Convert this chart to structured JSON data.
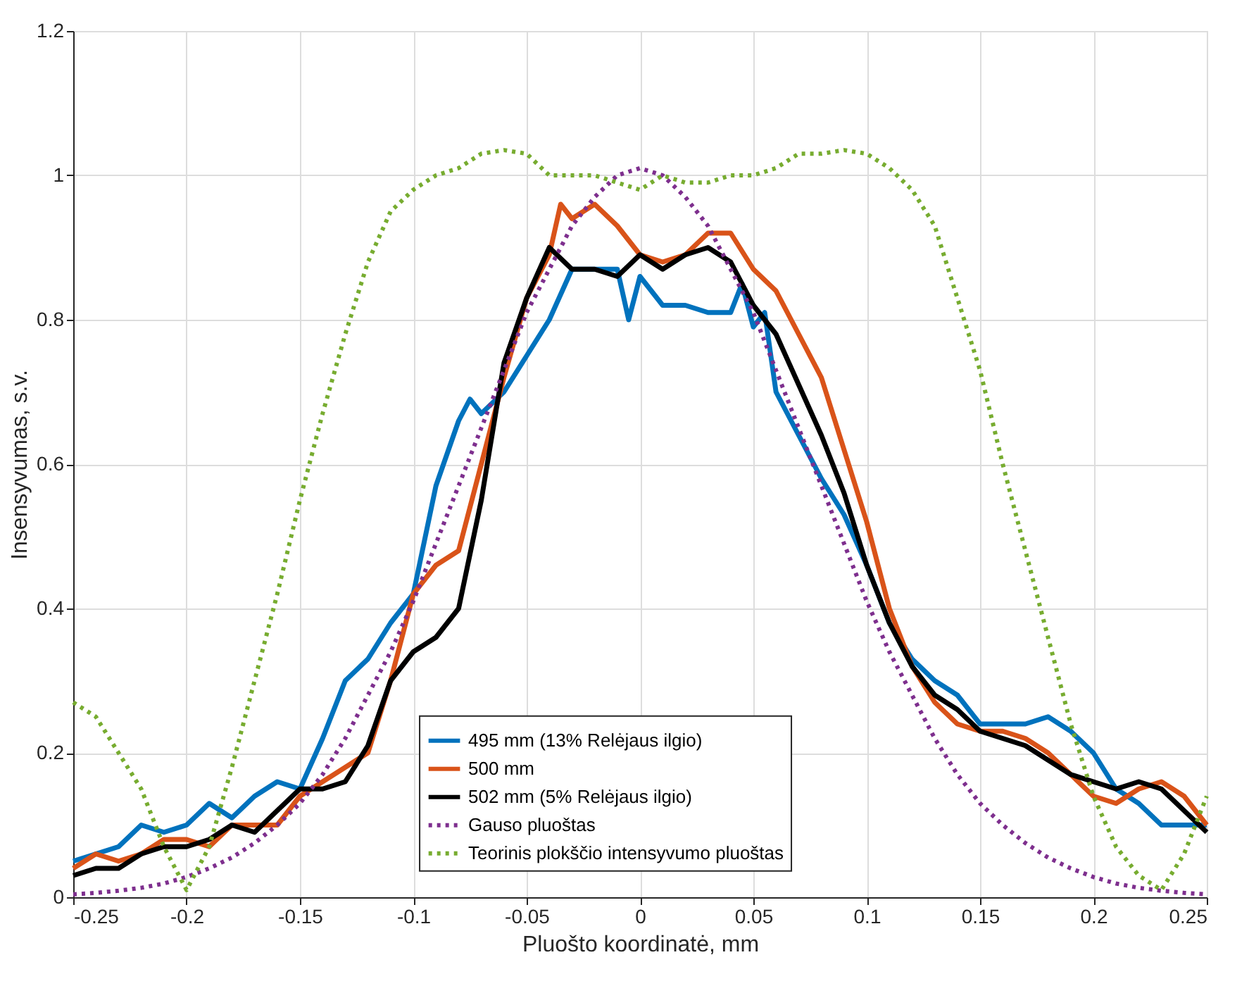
{
  "chart_data": {
    "type": "line",
    "xlabel": "Pluošto koordinatė, mm",
    "ylabel": "Insensyvumas, s.v.",
    "xlim": [
      -0.25,
      0.25
    ],
    "xticks": [
      -0.25,
      -0.2,
      -0.15,
      -0.1,
      -0.05,
      0,
      0.05,
      0.1,
      0.15,
      0.2,
      0.25
    ],
    "ylim": [
      0,
      1.2
    ],
    "yticks": [
      0,
      0.2,
      0.4,
      0.6,
      0.8,
      1,
      1.2
    ],
    "grid": true,
    "legend": "bottom",
    "marker": "none",
    "series": [
      {
        "name": "495 mm (13% Relėjaus ilgio)",
        "color": "#0072bd",
        "line_style": "solid",
        "x": [
          -0.25,
          -0.24,
          -0.23,
          -0.22,
          -0.21,
          -0.2,
          -0.19,
          -0.18,
          -0.17,
          -0.16,
          -0.15,
          -0.14,
          -0.13,
          -0.12,
          -0.11,
          -0.1,
          -0.09,
          -0.08,
          -0.075,
          -0.07,
          -0.06,
          -0.05,
          -0.04,
          -0.03,
          -0.02,
          -0.01,
          -0.005,
          0,
          0.01,
          0.02,
          0.03,
          0.04,
          0.045,
          0.05,
          0.055,
          0.06,
          0.07,
          0.08,
          0.09,
          0.1,
          0.11,
          0.12,
          0.13,
          0.14,
          0.15,
          0.16,
          0.17,
          0.18,
          0.19,
          0.2,
          0.21,
          0.22,
          0.23,
          0.24,
          0.25
        ],
        "values": [
          0.05,
          0.06,
          0.07,
          0.1,
          0.09,
          0.1,
          0.13,
          0.11,
          0.14,
          0.16,
          0.15,
          0.22,
          0.3,
          0.33,
          0.38,
          0.42,
          0.57,
          0.66,
          0.69,
          0.67,
          0.7,
          0.75,
          0.8,
          0.87,
          0.87,
          0.87,
          0.8,
          0.86,
          0.82,
          0.82,
          0.81,
          0.81,
          0.85,
          0.79,
          0.81,
          0.7,
          0.64,
          0.58,
          0.53,
          0.46,
          0.38,
          0.33,
          0.3,
          0.28,
          0.24,
          0.24,
          0.24,
          0.25,
          0.23,
          0.2,
          0.15,
          0.13,
          0.1,
          0.1,
          0.1
        ]
      },
      {
        "name": "500 mm",
        "color": "#d95319",
        "line_style": "solid",
        "x": [
          -0.25,
          -0.24,
          -0.23,
          -0.22,
          -0.21,
          -0.2,
          -0.19,
          -0.18,
          -0.17,
          -0.16,
          -0.15,
          -0.14,
          -0.13,
          -0.12,
          -0.11,
          -0.1,
          -0.09,
          -0.08,
          -0.07,
          -0.06,
          -0.05,
          -0.04,
          -0.035,
          -0.03,
          -0.02,
          -0.01,
          0,
          0.01,
          0.02,
          0.03,
          0.04,
          0.05,
          0.06,
          0.07,
          0.08,
          0.09,
          0.1,
          0.11,
          0.12,
          0.13,
          0.14,
          0.15,
          0.16,
          0.17,
          0.18,
          0.19,
          0.2,
          0.21,
          0.22,
          0.23,
          0.24,
          0.25
        ],
        "values": [
          0.04,
          0.06,
          0.05,
          0.06,
          0.08,
          0.08,
          0.07,
          0.1,
          0.1,
          0.1,
          0.14,
          0.16,
          0.18,
          0.2,
          0.3,
          0.42,
          0.46,
          0.48,
          0.6,
          0.72,
          0.83,
          0.89,
          0.96,
          0.94,
          0.96,
          0.93,
          0.89,
          0.88,
          0.89,
          0.92,
          0.92,
          0.87,
          0.84,
          0.78,
          0.72,
          0.62,
          0.52,
          0.4,
          0.32,
          0.27,
          0.24,
          0.23,
          0.23,
          0.22,
          0.2,
          0.17,
          0.14,
          0.13,
          0.15,
          0.16,
          0.14,
          0.1
        ]
      },
      {
        "name": "502 mm (5% Relėjaus ilgio)",
        "color": "#000000",
        "line_style": "solid",
        "x": [
          -0.25,
          -0.24,
          -0.23,
          -0.22,
          -0.21,
          -0.2,
          -0.19,
          -0.18,
          -0.17,
          -0.16,
          -0.15,
          -0.14,
          -0.13,
          -0.12,
          -0.11,
          -0.1,
          -0.09,
          -0.08,
          -0.07,
          -0.06,
          -0.05,
          -0.04,
          -0.03,
          -0.02,
          -0.01,
          0,
          0.01,
          0.02,
          0.03,
          0.04,
          0.05,
          0.06,
          0.07,
          0.08,
          0.09,
          0.1,
          0.11,
          0.12,
          0.13,
          0.14,
          0.15,
          0.16,
          0.17,
          0.18,
          0.19,
          0.2,
          0.21,
          0.22,
          0.23,
          0.24,
          0.25
        ],
        "values": [
          0.03,
          0.04,
          0.04,
          0.06,
          0.07,
          0.07,
          0.08,
          0.1,
          0.09,
          0.12,
          0.15,
          0.15,
          0.16,
          0.21,
          0.3,
          0.34,
          0.36,
          0.4,
          0.55,
          0.74,
          0.83,
          0.9,
          0.87,
          0.87,
          0.86,
          0.89,
          0.87,
          0.89,
          0.9,
          0.88,
          0.82,
          0.78,
          0.71,
          0.64,
          0.56,
          0.46,
          0.38,
          0.32,
          0.28,
          0.26,
          0.23,
          0.22,
          0.21,
          0.19,
          0.17,
          0.16,
          0.15,
          0.16,
          0.15,
          0.12,
          0.09
        ]
      },
      {
        "name": "Gauso pluoštas",
        "color": "#7e2f8e",
        "line_style": "dotted",
        "x": [
          -0.25,
          -0.24,
          -0.23,
          -0.22,
          -0.21,
          -0.2,
          -0.19,
          -0.18,
          -0.17,
          -0.16,
          -0.15,
          -0.14,
          -0.13,
          -0.12,
          -0.11,
          -0.1,
          -0.09,
          -0.08,
          -0.07,
          -0.06,
          -0.05,
          -0.04,
          -0.03,
          -0.02,
          -0.01,
          0,
          0.01,
          0.02,
          0.03,
          0.04,
          0.05,
          0.06,
          0.07,
          0.08,
          0.09,
          0.1,
          0.11,
          0.12,
          0.13,
          0.14,
          0.15,
          0.16,
          0.17,
          0.18,
          0.19,
          0.2,
          0.21,
          0.22,
          0.23,
          0.24,
          0.25
        ],
        "values": [
          0.004,
          0.006,
          0.009,
          0.013,
          0.019,
          0.028,
          0.04,
          0.055,
          0.075,
          0.1,
          0.13,
          0.17,
          0.22,
          0.28,
          0.34,
          0.41,
          0.49,
          0.57,
          0.65,
          0.73,
          0.81,
          0.87,
          0.93,
          0.97,
          1.0,
          1.01,
          1.0,
          0.97,
          0.93,
          0.87,
          0.81,
          0.73,
          0.65,
          0.57,
          0.49,
          0.41,
          0.34,
          0.28,
          0.22,
          0.17,
          0.13,
          0.1,
          0.075,
          0.055,
          0.04,
          0.028,
          0.019,
          0.013,
          0.009,
          0.006,
          0.004
        ]
      },
      {
        "name": "Teorinis plokščio intensyvumo pluoštas",
        "color": "#77ac30",
        "line_style": "dotted",
        "x": [
          -0.25,
          -0.24,
          -0.23,
          -0.22,
          -0.21,
          -0.2,
          -0.19,
          -0.18,
          -0.17,
          -0.16,
          -0.15,
          -0.14,
          -0.13,
          -0.12,
          -0.11,
          -0.1,
          -0.09,
          -0.08,
          -0.07,
          -0.06,
          -0.05,
          -0.04,
          -0.03,
          -0.02,
          -0.01,
          0,
          0.01,
          0.02,
          0.03,
          0.04,
          0.05,
          0.06,
          0.07,
          0.08,
          0.09,
          0.1,
          0.11,
          0.12,
          0.13,
          0.14,
          0.15,
          0.16,
          0.17,
          0.18,
          0.19,
          0.2,
          0.21,
          0.22,
          0.23,
          0.24,
          0.25
        ],
        "values": [
          0.27,
          0.25,
          0.2,
          0.15,
          0.07,
          0.01,
          0.07,
          0.18,
          0.3,
          0.42,
          0.55,
          0.67,
          0.78,
          0.88,
          0.95,
          0.98,
          1.0,
          1.01,
          1.03,
          1.035,
          1.03,
          1.0,
          1.0,
          1.0,
          0.99,
          0.98,
          1.0,
          0.99,
          0.99,
          1.0,
          1.0,
          1.01,
          1.03,
          1.03,
          1.035,
          1.03,
          1.01,
          0.98,
          0.93,
          0.83,
          0.73,
          0.6,
          0.48,
          0.36,
          0.24,
          0.14,
          0.07,
          0.03,
          0.01,
          0.06,
          0.14
        ]
      }
    ]
  }
}
